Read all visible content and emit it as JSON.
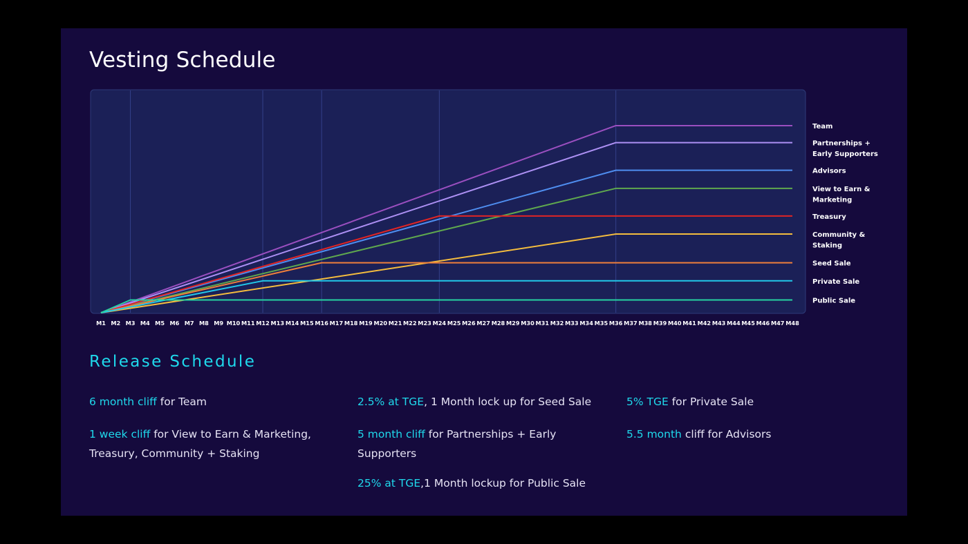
{
  "slide": {
    "title": "Vesting Schedule",
    "release_title": "Release Schedule"
  },
  "colors": {
    "background": "#150a3d",
    "plot_background": "#1b2057",
    "accent": "#1fd9ec",
    "text": "#e6e3f4"
  },
  "chart_data": {
    "type": "line",
    "title": "Vesting Schedule",
    "xlabel": "",
    "ylabel": "",
    "x": [
      "M1",
      "M2",
      "M3",
      "M4",
      "M5",
      "M6",
      "M7",
      "M8",
      "M9",
      "M10",
      "M11",
      "M12",
      "M13",
      "M14",
      "M15",
      "M16",
      "M17",
      "M18",
      "M19",
      "M20",
      "M21",
      "M22",
      "M23",
      "M24",
      "M25",
      "M26",
      "M27",
      "M28",
      "M29",
      "M30",
      "M31",
      "M32",
      "M33",
      "M34",
      "M35",
      "M36",
      "M37",
      "M38",
      "M39",
      "M40",
      "M41",
      "M42",
      "M43",
      "M44",
      "M45",
      "M46",
      "M47",
      "M48"
    ],
    "ylim": [
      0,
      100
    ],
    "grid_months": [
      3,
      12,
      16,
      24,
      36
    ],
    "legend_position": "right",
    "series": [
      {
        "name": "Team",
        "color": "#9b4fc0",
        "points": [
          [
            1,
            0
          ],
          [
            36,
            88
          ]
        ],
        "end": 48
      },
      {
        "name": "Partnerships + Early Supporters",
        "color": "#ad90f4",
        "points": [
          [
            1,
            0
          ],
          [
            36,
            80
          ]
        ],
        "end": 48
      },
      {
        "name": "Advisors",
        "color": "#4f8ef0",
        "points": [
          [
            1,
            0
          ],
          [
            36,
            67
          ]
        ],
        "end": 48
      },
      {
        "name": "View to Earn & Marketing",
        "color": "#5fa84e",
        "points": [
          [
            1,
            0
          ],
          [
            36,
            58.5
          ]
        ],
        "end": 48
      },
      {
        "name": "Treasury",
        "color": "#e02525",
        "points": [
          [
            1,
            0
          ],
          [
            24,
            45.5
          ]
        ],
        "end": 48
      },
      {
        "name": "Community & Staking",
        "color": "#f5bd3e",
        "points": [
          [
            1,
            0
          ],
          [
            36,
            37
          ]
        ],
        "end": 48
      },
      {
        "name": "Seed Sale",
        "color": "#ef7f3b",
        "points": [
          [
            1,
            0
          ],
          [
            16,
            23.5
          ]
        ],
        "end": 48
      },
      {
        "name": "Private Sale",
        "color": "#22c9ea",
        "points": [
          [
            1,
            0
          ],
          [
            12,
            15
          ]
        ],
        "end": 48
      },
      {
        "name": "Public Sale",
        "color": "#26d3a0",
        "points": [
          [
            1,
            0
          ],
          [
            3,
            6
          ]
        ],
        "end": 48
      }
    ],
    "legend": [
      [
        "Team"
      ],
      [
        "Partnerships +",
        "Early Supporters"
      ],
      [
        "Advisors"
      ],
      [
        "View to Earn &",
        "Marketing"
      ],
      [
        "Treasury"
      ],
      [
        "Community &",
        "Staking"
      ],
      [
        "Seed Sale"
      ],
      [
        "Private Sale"
      ],
      [
        "Public Sale"
      ]
    ]
  },
  "release_notes": {
    "note1": {
      "highlight": "6 month cliff",
      "text": " for Team"
    },
    "note2": {
      "highlight": "2.5% at TGE",
      "text": ", 1 Month lock up for Seed Sale"
    },
    "note3": {
      "highlight": "5% TGE",
      "text": " for Private Sale"
    },
    "note4": {
      "highlight": "1 week cliff",
      "text": " for View to Earn & Marketing, Treasury, Community + Staking"
    },
    "note5": {
      "highlight": "5 month cliff",
      "text": " for Partnerships + Early Supporters"
    },
    "note6": {
      "highlight": "5.5 month",
      "text": " cliff for Advisors"
    },
    "note7": {
      "highlight": "25% at TGE",
      "text": ",1 Month lockup for Public Sale"
    }
  }
}
